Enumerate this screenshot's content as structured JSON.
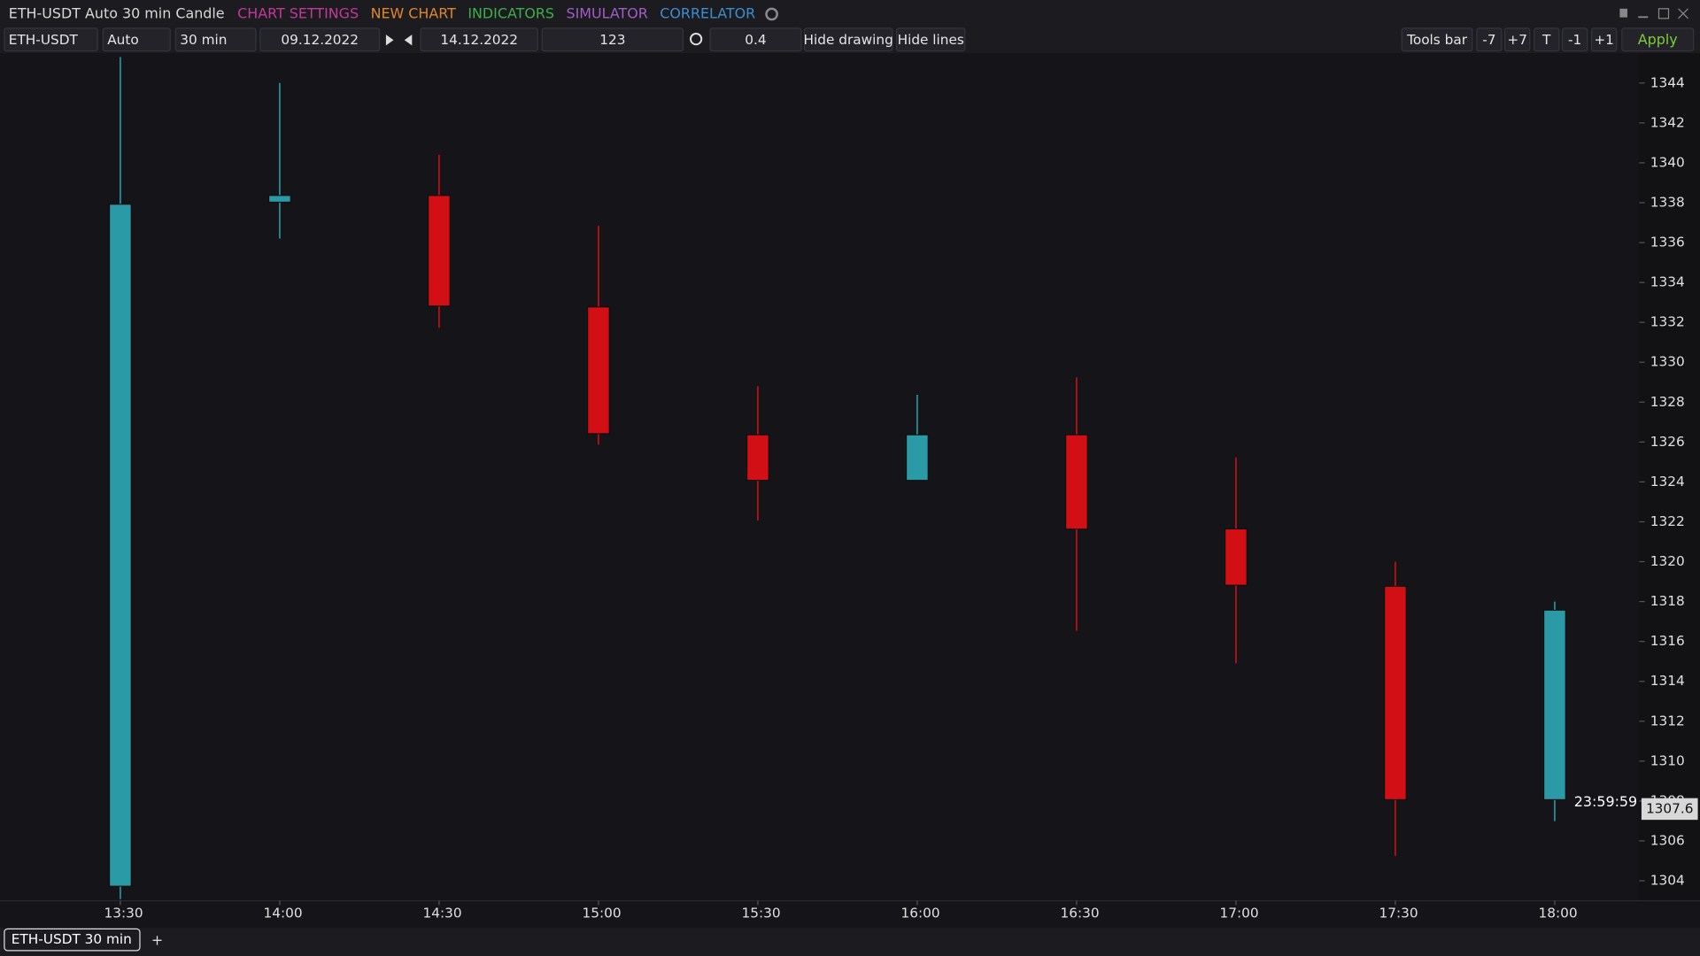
{
  "title": "ETH-USDT Auto 30 min Candle",
  "menu": [
    {
      "label": "CHART SETTINGS",
      "color": "#c2399c"
    },
    {
      "label": "NEW CHART",
      "color": "#e0862b"
    },
    {
      "label": "INDICATORS",
      "color": "#3fae4a"
    },
    {
      "label": "SIMULATOR",
      "color": "#a35cc8"
    },
    {
      "label": "CORRELATOR",
      "color": "#3a8fd2"
    }
  ],
  "toolbar": {
    "symbol": "ETH-USDT",
    "scale": "Auto",
    "timeframe": "30 min",
    "date_from": "09.12.2022",
    "date_to": "14.12.2022",
    "count": "123",
    "ratio": "0.4",
    "hide_drawing": "Hide drawing",
    "hide_lines": "Hide lines",
    "tools_bar": "Tools bar",
    "buttons": [
      "-7",
      "+7",
      "T",
      "-1",
      "+1"
    ],
    "apply": "Apply"
  },
  "tabs": {
    "active": "ETH-USDT 30 min",
    "add": "+"
  },
  "chart_data": {
    "type": "candlestick",
    "categories": [
      "13:30",
      "14:00",
      "14:30",
      "15:00",
      "15:30",
      "16:00",
      "16:30",
      "17:00",
      "17:30",
      "18:00"
    ],
    "open": [
      1303.73,
      1338.03,
      1338.36,
      1332.77,
      1326.36,
      1324.08,
      1326.36,
      1321.64,
      1318.76,
      1308.07
    ],
    "high": [
      1345.3,
      1344.0,
      1340.4,
      1336.84,
      1328.8,
      1328.37,
      1329.24,
      1325.22,
      1320.0,
      1318.0
    ],
    "low": [
      1303.08,
      1336.2,
      1331.73,
      1325.87,
      1322.07,
      1324.08,
      1316.54,
      1314.91,
      1305.25,
      1306.99
    ],
    "close": [
      1337.92,
      1338.36,
      1332.82,
      1326.42,
      1324.08,
      1326.36,
      1321.64,
      1318.82,
      1308.07,
      1317.57
    ],
    "up_color": "#2a9ba6",
    "down_color": "#d10f14",
    "ylim": [
      1303,
      1345.5
    ],
    "yticks": [
      1304,
      1306,
      1308,
      1310,
      1312,
      1314,
      1316,
      1318,
      1320,
      1322,
      1324,
      1326,
      1328,
      1330,
      1332,
      1334,
      1336,
      1338,
      1340,
      1342,
      1344
    ],
    "last_price": 1307.6,
    "timer": "23:59:59"
  }
}
